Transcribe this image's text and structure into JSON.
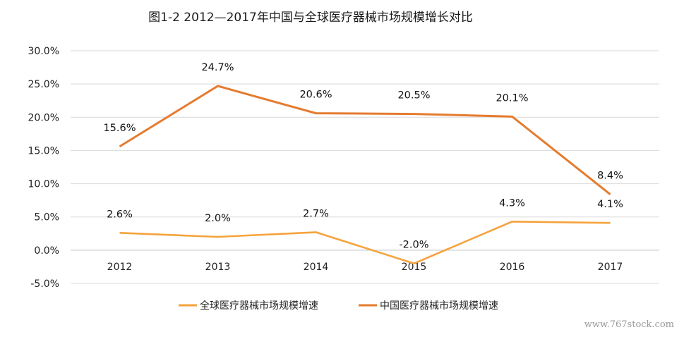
{
  "title": "图1-2 2012—2017年中国与全球医疗器械市场规模增长对比",
  "watermark": "www.767stock.com",
  "chart_data": {
    "type": "line",
    "title": "图1-2 2012—2017年中国与全球医疗器械市场规模增长对比",
    "xlabel": "",
    "ylabel": "",
    "categories": [
      "2012",
      "2013",
      "2014",
      "2015",
      "2016",
      "2017"
    ],
    "ylim": [
      -5.0,
      30.0
    ],
    "yticks": [
      30.0,
      25.0,
      20.0,
      15.0,
      10.0,
      5.0,
      0.0,
      -5.0
    ],
    "ytick_labels": [
      "30.0%",
      "25.0%",
      "20.0%",
      "15.0%",
      "10.0%",
      "5.0%",
      "0.0%",
      "-5.0%"
    ],
    "grid": true,
    "legend_position": "bottom",
    "series": [
      {
        "name": "全球医疗器械市场规模增速",
        "color": "#F5A33C",
        "values": [
          2.6,
          2.0,
          2.7,
          -2.0,
          4.3,
          4.1
        ],
        "labels": [
          "2.6%",
          "2.0%",
          "2.7%",
          "-2.0%",
          "4.3%",
          "4.1%"
        ]
      },
      {
        "name": "中国医疗器械市场规模增速",
        "color": "#E57B2F",
        "values": [
          15.6,
          24.7,
          20.6,
          20.5,
          20.1,
          8.4
        ],
        "labels": [
          "15.6%",
          "24.7%",
          "20.6%",
          "20.5%",
          "20.1%",
          "8.4%"
        ]
      }
    ]
  }
}
